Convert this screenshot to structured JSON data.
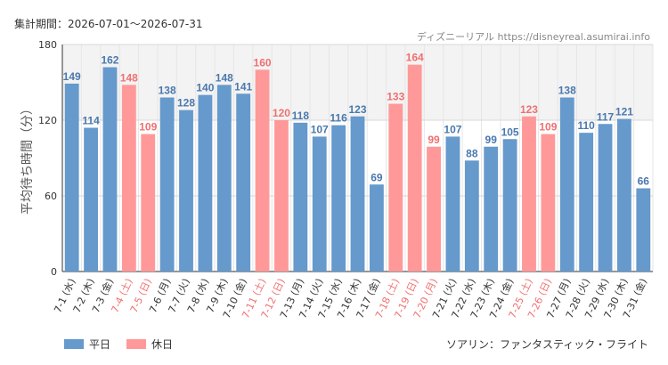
{
  "header": {
    "period_label": "集計期間：2026-07-01〜2026-07-31",
    "credit": "ディズニーリアル https://disneyreal.asumirai.info"
  },
  "footer": {
    "attraction": "ソアリン：ファンタスティック・フライト"
  },
  "colors": {
    "weekday": "#6699cc",
    "holiday": "#ff9999",
    "weekday_text": "#4a78ad",
    "holiday_text": "#f07070"
  },
  "chart_data": {
    "type": "bar",
    "title": "",
    "xlabel": "",
    "ylabel": "平均待ち時間（分）",
    "ylim": [
      0,
      180
    ],
    "yticks": [
      0,
      60,
      120,
      180
    ],
    "categories": [
      "7-1 (水)",
      "7-2 (木)",
      "7-3 (金)",
      "7-4 (土)",
      "7-5 (日)",
      "7-6 (月)",
      "7-7 (火)",
      "7-8 (水)",
      "7-9 (木)",
      "7-10 (金)",
      "7-11 (土)",
      "7-12 (日)",
      "7-13 (月)",
      "7-14 (火)",
      "7-15 (水)",
      "7-16 (木)",
      "7-17 (金)",
      "7-18 (土)",
      "7-19 (日)",
      "7-20 (月)",
      "7-21 (火)",
      "7-22 (水)",
      "7-23 (木)",
      "7-24 (金)",
      "7-25 (土)",
      "7-26 (日)",
      "7-27 (月)",
      "7-28 (火)",
      "7-29 (水)",
      "7-30 (木)",
      "7-31 (金)"
    ],
    "values": [
      149,
      114,
      162,
      148,
      109,
      138,
      128,
      140,
      148,
      141,
      160,
      120,
      118,
      107,
      116,
      123,
      69,
      133,
      164,
      99,
      107,
      88,
      99,
      105,
      123,
      109,
      138,
      110,
      117,
      121,
      66
    ],
    "day_type": [
      "平日",
      "平日",
      "平日",
      "休日",
      "休日",
      "平日",
      "平日",
      "平日",
      "平日",
      "平日",
      "休日",
      "休日",
      "平日",
      "平日",
      "平日",
      "平日",
      "平日",
      "休日",
      "休日",
      "休日",
      "平日",
      "平日",
      "平日",
      "平日",
      "休日",
      "休日",
      "平日",
      "平日",
      "平日",
      "平日",
      "平日"
    ],
    "legend": {
      "position": "bottom-left",
      "entries": [
        "平日",
        "休日"
      ]
    },
    "grid": true
  }
}
